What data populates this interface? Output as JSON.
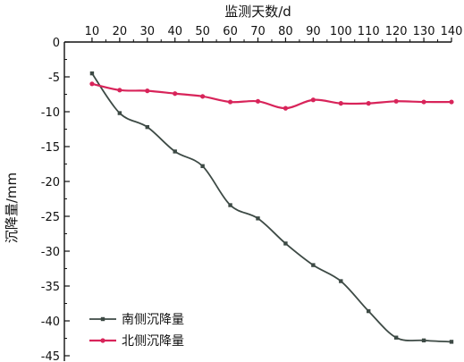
{
  "chart_data": {
    "type": "line",
    "title": "",
    "xlabel": "监测天数/d",
    "ylabel": "沉降量/mm",
    "x_axis_position": "top",
    "x": [
      10,
      20,
      30,
      40,
      50,
      60,
      70,
      80,
      90,
      100,
      110,
      120,
      130,
      140
    ],
    "x_tick_labels": [
      "10",
      "20",
      "30",
      "40",
      "50",
      "60",
      "70",
      "80",
      "90",
      "100",
      "110",
      "120",
      "130",
      "140"
    ],
    "y_tick_labels": [
      "0",
      "-5",
      "-10",
      "-15",
      "-20",
      "-25",
      "-30",
      "-35",
      "-40",
      "-45"
    ],
    "y_ticks": [
      0,
      -5,
      -10,
      -15,
      -20,
      -25,
      -30,
      -35,
      -40,
      -45
    ],
    "xlim": [
      0,
      140
    ],
    "ylim": [
      -45,
      0
    ],
    "grid": false,
    "legend_position": "bottom-left",
    "series": [
      {
        "name": "南侧沉降量",
        "color": "#3d4a45",
        "values": [
          -4.5,
          -10.2,
          -12.2,
          -15.7,
          -17.8,
          -23.4,
          -25.3,
          -28.9,
          -32.0,
          -34.3,
          -38.6,
          -42.4,
          -42.8,
          -43.0
        ]
      },
      {
        "name": "北侧沉降量",
        "color": "#d8245a",
        "values": [
          -6.0,
          -6.9,
          -7.0,
          -7.4,
          -7.8,
          -8.6,
          -8.5,
          -9.5,
          -8.3,
          -8.8,
          -8.8,
          -8.5,
          -8.6,
          -8.6
        ]
      }
    ]
  }
}
